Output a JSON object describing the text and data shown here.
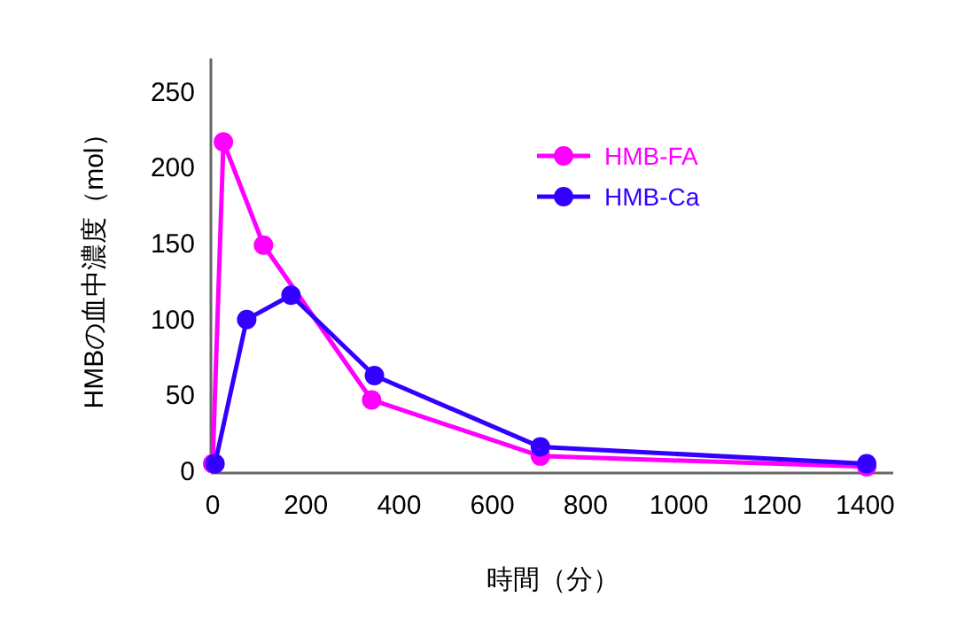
{
  "chart_data": {
    "type": "line",
    "xlabel": "時間（分）",
    "ylabel": "HMBの血中濃度（mol）",
    "marker": "circle",
    "legend": "top right",
    "grid": false,
    "xlim": [
      0,
      1460
    ],
    "xticks": [
      0,
      200,
      400,
      600,
      800,
      1000,
      1200,
      1400
    ],
    "ylim": [
      0,
      272
    ],
    "yticks": [
      0,
      50,
      100,
      150,
      200,
      250
    ],
    "series": [
      {
        "name": "HMB-FA",
        "color": "#ff00ff",
        "x": [
          0,
          23,
          109,
          341,
          703,
          1403
        ],
        "values": [
          5,
          217,
          149,
          47,
          10,
          3
        ]
      },
      {
        "name": "HMB-Ca",
        "color": "#3300ff",
        "x": [
          5,
          73,
          168,
          347,
          703,
          1403
        ],
        "values": [
          5,
          100,
          116,
          63,
          16,
          5
        ]
      }
    ]
  }
}
